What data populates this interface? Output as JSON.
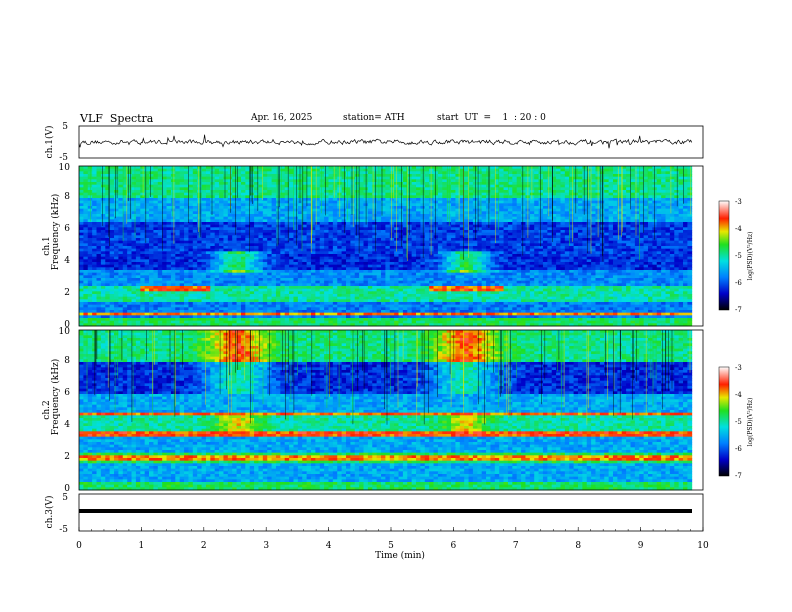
{
  "header": {
    "title": "VLF  Spectra",
    "date": "Apr. 16, 2025",
    "station": "station= ATH",
    "start": "start  UT  =    1  : 20 : 0"
  },
  "chart_data": [
    {
      "type": "line",
      "name": "ch1-waveform",
      "ylabel": "ch.1(V)",
      "ylim": [
        -5,
        5
      ],
      "yticks": [
        "5",
        "-5"
      ],
      "xlim": [
        0,
        10
      ]
    },
    {
      "type": "heatmap",
      "name": "ch1-spectrogram",
      "ylabel": "Frequency (kHz)",
      "channel_label": "ch.1",
      "ylim": [
        0,
        10
      ],
      "yticks": [
        "0",
        "2",
        "4",
        "6",
        "8",
        "10"
      ],
      "xlim": [
        0,
        10
      ],
      "colorbar": {
        "label": "log(PSD)(V²/Hz)",
        "ticks": [
          "-3",
          "-4",
          "-5",
          "-6",
          "-7"
        ],
        "range": [
          -7,
          -3
        ]
      }
    },
    {
      "type": "heatmap",
      "name": "ch2-spectrogram",
      "ylabel": "Frequency (kHz)",
      "channel_label": "ch.2",
      "ylim": [
        0,
        10
      ],
      "yticks": [
        "0",
        "2",
        "4",
        "6",
        "8",
        "10"
      ],
      "xlim": [
        0,
        10
      ],
      "colorbar": {
        "label": "log(PSD)(V²/Hz)",
        "ticks": [
          "-3",
          "-4",
          "-5",
          "-6",
          "-7"
        ],
        "range": [
          -7,
          -3
        ]
      }
    },
    {
      "type": "line",
      "name": "ch3-waveform",
      "ylabel": "ch.3(V)",
      "ylim": [
        -5,
        5
      ],
      "yticks": [
        "5",
        "-5"
      ],
      "xlim": [
        0,
        10
      ],
      "xlabel": "Time  (min)",
      "xticks": [
        "0",
        "1",
        "2",
        "3",
        "4",
        "5",
        "6",
        "7",
        "8",
        "9",
        "10"
      ]
    }
  ]
}
